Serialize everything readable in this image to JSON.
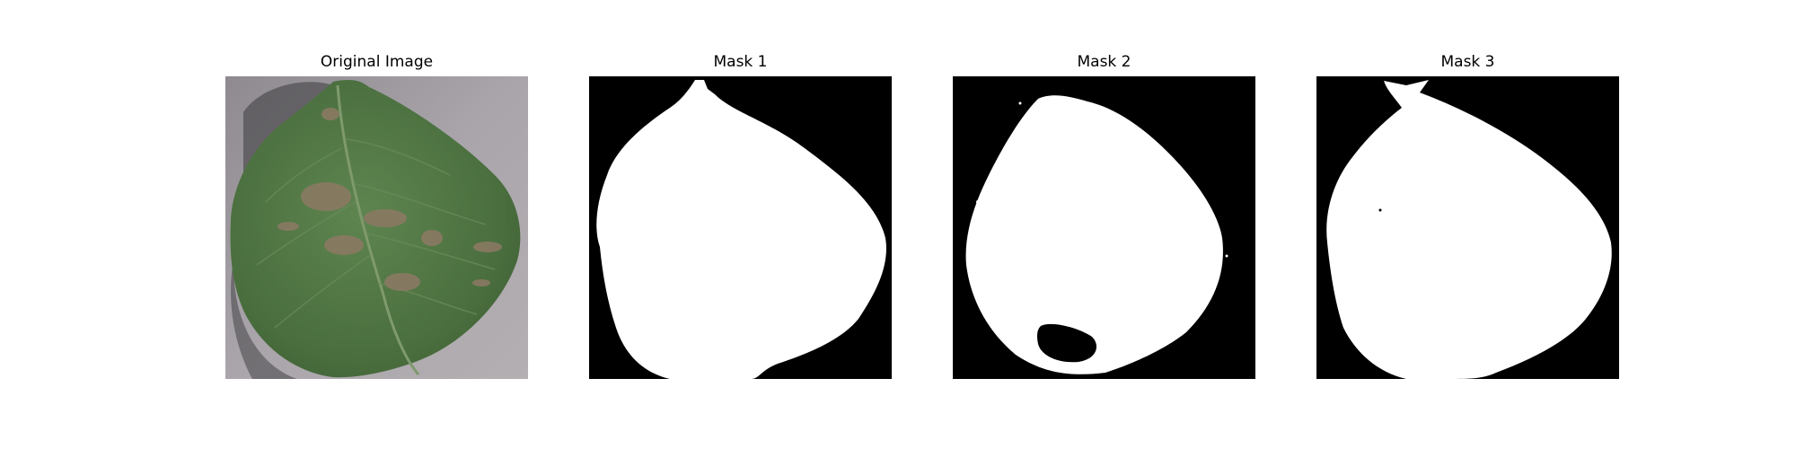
{
  "figure": {
    "panels": [
      {
        "title": "Original Image"
      },
      {
        "title": "Mask 1"
      },
      {
        "title": "Mask 2"
      },
      {
        "title": "Mask 3"
      }
    ]
  },
  "colors": {
    "background": "#ffffff",
    "mask_background": "#000000",
    "mask_foreground": "#ffffff",
    "ground": "#a9a3a8",
    "leaf": "#4e7440",
    "lesion": "#8a7a63"
  }
}
